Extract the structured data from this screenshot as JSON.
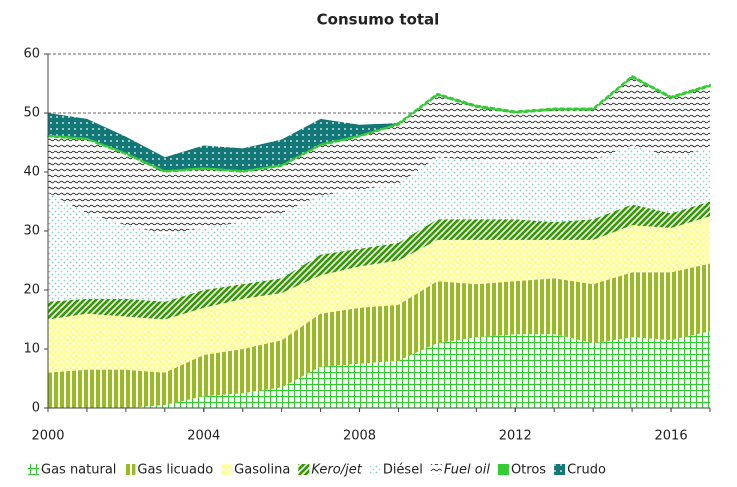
{
  "chart_data": {
    "type": "area",
    "title": "Consumo total",
    "x": [
      2000,
      2001,
      2002,
      2003,
      2004,
      2005,
      2006,
      2007,
      2008,
      2009,
      2010,
      2011,
      2012,
      2013,
      2014,
      2015,
      2016,
      2017
    ],
    "xlim": [
      2000,
      2017
    ],
    "xticks": [
      2000,
      2004,
      2008,
      2012,
      2016
    ],
    "ylim": [
      0,
      60
    ],
    "yticks": [
      0,
      10,
      20,
      30,
      40,
      50,
      60
    ],
    "grid": true,
    "legend": "bottom",
    "series": [
      {
        "name": "Gas natural",
        "color": "#33cc33",
        "values": [
          0,
          0,
          0,
          0.5,
          2,
          2.5,
          3.5,
          7,
          7.5,
          8,
          11,
          12,
          12.5,
          12.5,
          11,
          12,
          11.5,
          13
        ]
      },
      {
        "name": "Gas licuado",
        "color": "#99bb22",
        "values": [
          6,
          6.5,
          6.5,
          5.5,
          7,
          7.5,
          8,
          9,
          9.5,
          9.5,
          10.5,
          9,
          9,
          9.5,
          10,
          11,
          11.5,
          11.5
        ]
      },
      {
        "name": "Gasolina",
        "color": "#ffff88",
        "values": [
          9,
          9.5,
          9,
          9,
          8,
          8.5,
          8,
          6.5,
          7,
          7.5,
          7,
          7.5,
          7,
          6.5,
          7.5,
          8,
          7.5,
          8
        ]
      },
      {
        "name": "Kero/jet",
        "color": "#339900",
        "values": [
          3,
          2.5,
          3,
          3,
          3,
          2.5,
          2.5,
          3.5,
          3,
          3,
          3.5,
          3.5,
          3.5,
          3,
          3.5,
          3.5,
          2.5,
          2.5
        ]
      },
      {
        "name": "Diésel",
        "color": "#88cccc",
        "values": [
          18.5,
          14.5,
          12.5,
          11.5,
          10.5,
          10.5,
          11,
          10,
          10,
          10,
          10.5,
          10,
          9.5,
          10,
          10,
          10,
          9.5,
          9
        ]
      },
      {
        "name": "Fuel oil",
        "color": "#333333",
        "values": [
          9.5,
          12.5,
          12,
          10.5,
          10,
          8.5,
          8,
          8.5,
          9,
          10,
          10.5,
          9,
          8.5,
          9,
          8.5,
          11.5,
          10,
          10.5
        ]
      },
      {
        "name": "Otros",
        "color": "#33cc33",
        "values": [
          0.3,
          0.3,
          0.3,
          0.3,
          0.3,
          0.3,
          0.3,
          0.3,
          0.3,
          0.3,
          0.3,
          0.3,
          0.3,
          0.3,
          0.3,
          0.3,
          0.3,
          0.3
        ]
      },
      {
        "name": "Crudo",
        "color": "#117777",
        "values": [
          3.7,
          3.2,
          2.7,
          2.2,
          3.7,
          3.7,
          4.2,
          4.2,
          1.7,
          0,
          0,
          0,
          0,
          0,
          0,
          0,
          0,
          0
        ]
      }
    ]
  }
}
